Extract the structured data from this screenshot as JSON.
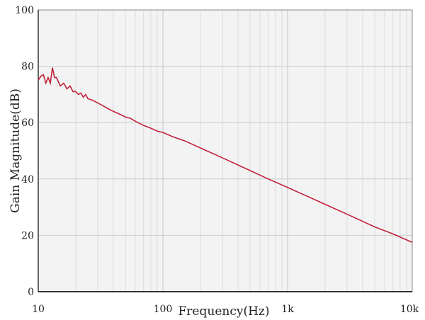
{
  "chart_data": {
    "type": "line",
    "title": "",
    "xlabel": "Frequency(Hz)",
    "ylabel": "Gain Magnitude(dB)",
    "x_scale": "log",
    "xlim": [
      10,
      10000
    ],
    "ylim": [
      0,
      100
    ],
    "x_ticks": [
      {
        "value": 10,
        "label": "10"
      },
      {
        "value": 100,
        "label": "100"
      },
      {
        "value": 1000,
        "label": "1k"
      },
      {
        "value": 10000,
        "label": "10k"
      }
    ],
    "y_ticks": [
      {
        "value": 0,
        "label": "0"
      },
      {
        "value": 20,
        "label": "20"
      },
      {
        "value": 40,
        "label": "40"
      },
      {
        "value": 60,
        "label": "60"
      },
      {
        "value": 80,
        "label": "80"
      },
      {
        "value": 100,
        "label": "100"
      }
    ],
    "grid": true,
    "legend": "none",
    "colors": {
      "line": "#c0223b",
      "plot_background": "#f3f3f3",
      "grid": "#d6d6d6",
      "frame": "#8a8a8a"
    },
    "series": [
      {
        "x": [
          10,
          10.5,
          11,
          11.5,
          12,
          12.5,
          13,
          13.5,
          14,
          15,
          16,
          17,
          18,
          19,
          20,
          21,
          22,
          23,
          24,
          25,
          27,
          30,
          33,
          36,
          40,
          45,
          50,
          55,
          60,
          70,
          80,
          90,
          100,
          120,
          150,
          200,
          300,
          500,
          700,
          1000,
          1500,
          2000,
          3000,
          5000,
          7000,
          10000
        ],
        "y": [
          75,
          76.5,
          77,
          74,
          76,
          74,
          79.5,
          76,
          76,
          73,
          74,
          72,
          73,
          71,
          71,
          70,
          70.5,
          69,
          70,
          68.5,
          68,
          67,
          66,
          65,
          64,
          63,
          62,
          61.5,
          60.5,
          59,
          58,
          57,
          56.5,
          55,
          53.5,
          51,
          47.5,
          43,
          40,
          37,
          33.5,
          31,
          27.5,
          23,
          20.5,
          17.5
        ]
      }
    ]
  }
}
